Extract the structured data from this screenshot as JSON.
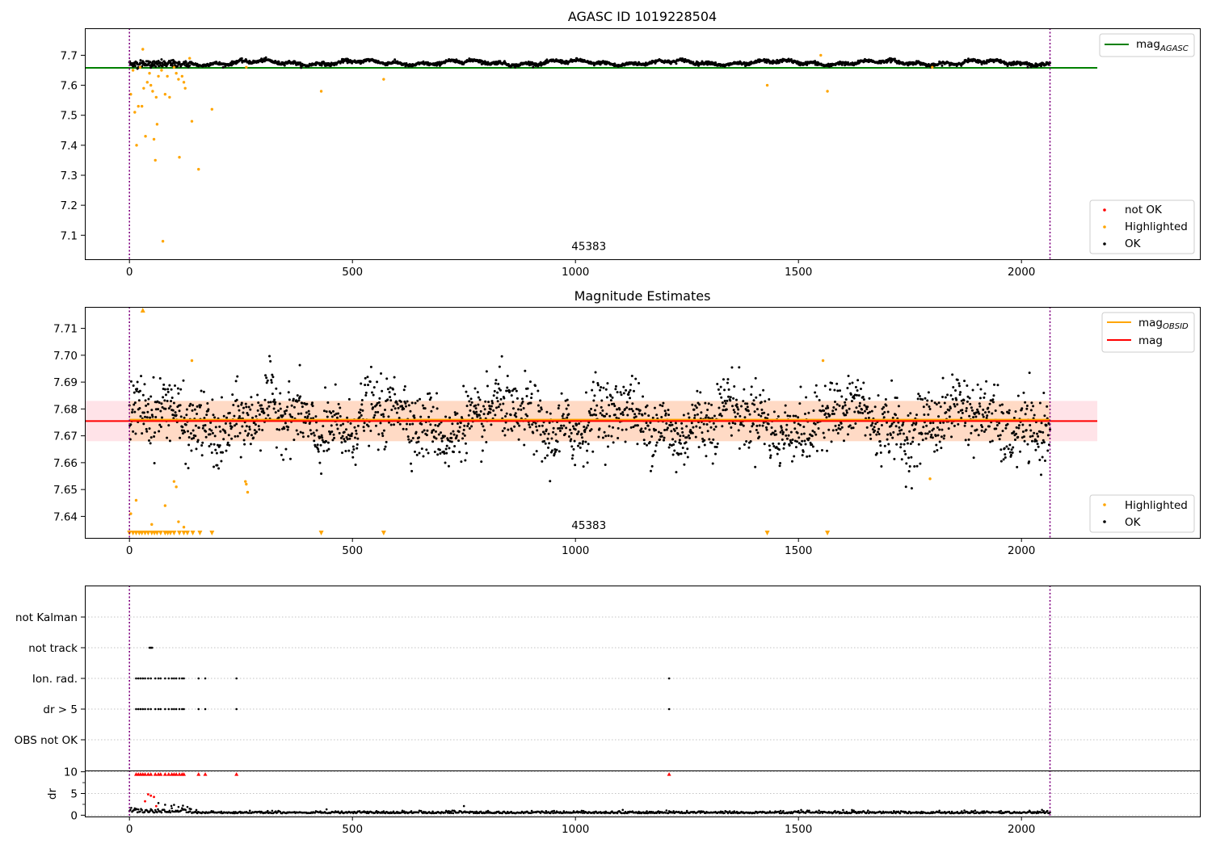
{
  "chart_data": [
    {
      "id": "top",
      "type": "scatter",
      "title": "AGASC ID 1019228504",
      "xlabel": "",
      "ylabel": "",
      "xlim": [
        -100,
        2400
      ],
      "ylim": [
        7.02,
        7.79
      ],
      "xticks": [
        0,
        500,
        1000,
        1500,
        2000
      ],
      "yticks": [
        7.1,
        7.2,
        7.3,
        7.4,
        7.5,
        7.6,
        7.7
      ],
      "yticks_fmt": 1,
      "vlines": [
        0,
        2064
      ],
      "annotation": {
        "text": "45383",
        "x": 1030,
        "y": 7.03
      },
      "hline": {
        "name": "magAGASC",
        "value": 7.658,
        "color": "#008000",
        "xrange": [
          -100,
          2170
        ]
      },
      "legend_line": {
        "label": "mag",
        "sub": "AGASC",
        "color": "#008000"
      },
      "legend_points": [
        {
          "label": "not OK",
          "color": "#ff0000"
        },
        {
          "label": "Highlighted",
          "color": "#ffa500"
        },
        {
          "label": "OK",
          "color": "#000000"
        }
      ],
      "ok_baseline": 7.675,
      "ok_spread": 0.008,
      "highlighted": [
        [
          3,
          7.57
        ],
        [
          8,
          7.65
        ],
        [
          12,
          7.51
        ],
        [
          16,
          7.4
        ],
        [
          20,
          7.53
        ],
        [
          24,
          7.66
        ],
        [
          28,
          7.53
        ],
        [
          30,
          7.72
        ],
        [
          32,
          7.59
        ],
        [
          36,
          7.43
        ],
        [
          40,
          7.61
        ],
        [
          45,
          7.64
        ],
        [
          48,
          7.6
        ],
        [
          52,
          7.58
        ],
        [
          55,
          7.42
        ],
        [
          58,
          7.35
        ],
        [
          60,
          7.56
        ],
        [
          62,
          7.47
        ],
        [
          65,
          7.63
        ],
        [
          72,
          7.65
        ],
        [
          75,
          7.08
        ],
        [
          80,
          7.57
        ],
        [
          85,
          7.63
        ],
        [
          90,
          7.56
        ],
        [
          100,
          7.66
        ],
        [
          105,
          7.64
        ],
        [
          110,
          7.62
        ],
        [
          112,
          7.36
        ],
        [
          118,
          7.63
        ],
        [
          122,
          7.61
        ],
        [
          125,
          7.59
        ],
        [
          135,
          7.69
        ],
        [
          140,
          7.48
        ],
        [
          155,
          7.32
        ],
        [
          185,
          7.52
        ],
        [
          262,
          7.66
        ],
        [
          430,
          7.58
        ],
        [
          570,
          7.62
        ],
        [
          1430,
          7.6
        ],
        [
          1550,
          7.7
        ],
        [
          1565,
          7.58
        ],
        [
          1800,
          7.66
        ]
      ]
    },
    {
      "id": "middle",
      "type": "scatter",
      "title": "Magnitude Estimates",
      "xlabel": "",
      "ylabel": "",
      "xlim": [
        -100,
        2400
      ],
      "ylim": [
        7.632,
        7.718
      ],
      "xticks": [
        0,
        500,
        1000,
        1500,
        2000
      ],
      "yticks": [
        7.64,
        7.65,
        7.66,
        7.67,
        7.68,
        7.69,
        7.7,
        7.71
      ],
      "yticks_fmt": 2,
      "vlines": [
        0,
        2064
      ],
      "annotation": {
        "text": "45383",
        "x": 1030,
        "y": 7.6335
      },
      "band": {
        "low": 7.668,
        "high": 7.683,
        "xrange": [
          -100,
          2170
        ]
      },
      "mag_line": {
        "name": "mag",
        "value": 7.6755,
        "color": "#ff0000",
        "xrange": [
          -100,
          2170
        ]
      },
      "obsid_line": {
        "name": "magOBSID",
        "value": 7.676,
        "color": "#ffa500",
        "xrange": [
          0,
          2064
        ]
      },
      "legend_lines": [
        {
          "label": "mag",
          "sub": "OBSID",
          "color": "#ffa500"
        },
        {
          "label": "mag",
          "sub": "",
          "color": "#ff0000"
        }
      ],
      "legend_points": [
        {
          "label": "Highlighted",
          "color": "#ffa500"
        },
        {
          "label": "OK",
          "color": "#000000"
        }
      ],
      "ok_baseline": 7.6755,
      "ok_spread": 0.0075,
      "highlighted": [
        [
          3,
          7.641
        ],
        [
          15,
          7.646
        ],
        [
          50,
          7.637
        ],
        [
          80,
          7.644
        ],
        [
          100,
          7.653
        ],
        [
          105,
          7.651
        ],
        [
          110,
          7.638
        ],
        [
          122,
          7.636
        ],
        [
          140,
          7.698
        ],
        [
          260,
          7.653
        ],
        [
          262,
          7.652
        ],
        [
          265,
          7.649
        ],
        [
          1555,
          7.698
        ],
        [
          1795,
          7.654
        ]
      ],
      "below_markers_x": [
        0,
        8,
        15,
        22,
        28,
        35,
        42,
        50,
        56,
        62,
        70,
        80,
        86,
        92,
        100,
        112,
        122,
        130,
        142,
        158,
        185,
        430,
        570,
        1430,
        1565
      ],
      "above_markers_x": [
        30
      ]
    },
    {
      "id": "flags",
      "type": "scatter",
      "title": "",
      "xlabel": "",
      "ylabel": "",
      "xlim": [
        -100,
        2400
      ],
      "categories": [
        "not Kalman",
        "not track",
        "Ion. rad.",
        "dr > 5",
        "OBS not OK"
      ],
      "vlines": [
        0,
        2064
      ],
      "points": {
        "not track": [
          45,
          47,
          49,
          51
        ],
        "Ion. rad.": [
          15,
          20,
          25,
          30,
          35,
          42,
          48,
          58,
          65,
          70,
          80,
          88,
          95,
          100,
          105,
          112,
          118,
          122,
          155,
          170,
          240,
          1210
        ],
        "dr > 5": [
          15,
          20,
          25,
          30,
          35,
          42,
          48,
          58,
          65,
          70,
          80,
          88,
          95,
          100,
          105,
          112,
          118,
          122,
          155,
          170,
          240,
          1210
        ]
      }
    },
    {
      "id": "dr",
      "type": "scatter",
      "title": "",
      "xlabel": "",
      "ylabel": "dr",
      "xlim": [
        -100,
        2400
      ],
      "ylim": [
        -0.3,
        10.3
      ],
      "xticks": [
        0,
        500,
        1000,
        1500,
        2000
      ],
      "yticks": [
        0,
        5,
        10
      ],
      "vlines": [
        0,
        2064
      ],
      "clipped_x": [
        15,
        20,
        25,
        30,
        35,
        42,
        48,
        58,
        65,
        70,
        80,
        88,
        95,
        100,
        105,
        112,
        118,
        122,
        155,
        170,
        240,
        1210
      ],
      "red_points": [
        [
          35,
          3.2
        ],
        [
          42,
          4.8
        ],
        [
          48,
          4.5
        ],
        [
          55,
          4.2
        ],
        [
          60,
          2.1
        ]
      ],
      "outliers": [
        [
          65,
          2.8
        ],
        [
          80,
          2.4
        ],
        [
          95,
          1.6
        ],
        [
          110,
          1.9
        ],
        [
          120,
          2.2
        ],
        [
          135,
          1.5
        ],
        [
          150,
          1.2
        ],
        [
          750,
          2.1
        ],
        [
          1620,
          1.2
        ]
      ]
    }
  ]
}
